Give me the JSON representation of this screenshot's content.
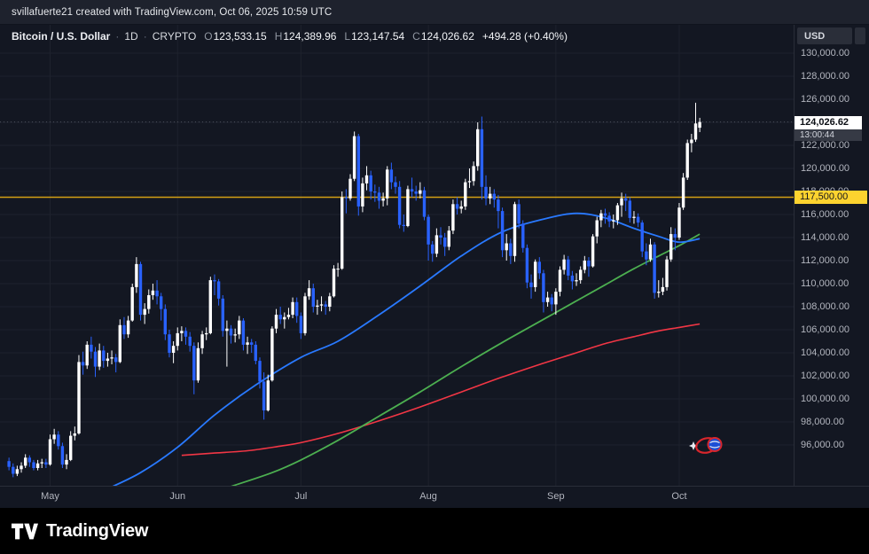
{
  "attribution": "svillafuerte21 created with TradingView.com, Oct 06, 2025 10:59 UTC",
  "legend": {
    "symbol": "Bitcoin / U.S. Dollar",
    "separator": "·",
    "interval": "1D",
    "exchange": "CRYPTO",
    "ohlc": [
      {
        "label": "O",
        "value": "123,533.15"
      },
      {
        "label": "H",
        "value": "124,389.96"
      },
      {
        "label": "L",
        "value": "123,147.54"
      },
      {
        "label": "C",
        "value": "124,026.62"
      }
    ],
    "change": "+494.28 (+0.40%)"
  },
  "price_axis": {
    "currency": "USD",
    "ticks": [
      "130,000.00",
      "128,000.00",
      "126,000.00",
      "124,000.00",
      "122,000.00",
      "120,000.00",
      "118,000.00",
      "116,000.00",
      "114,000.00",
      "112,000.00",
      "110,000.00",
      "108,000.00",
      "106,000.00",
      "104,000.00",
      "102,000.00",
      "100,000.00",
      "98,000.00",
      "96,000.00"
    ],
    "tick_values": [
      130000,
      128000,
      126000,
      124000,
      122000,
      120000,
      118000,
      116000,
      114000,
      112000,
      110000,
      108000,
      106000,
      104000,
      102000,
      100000,
      98000,
      96000
    ],
    "last_price": {
      "text": "124,026.62",
      "value": 124026.62,
      "countdown": "13:00:44"
    },
    "level": {
      "text": "117,500.00",
      "value": 117500
    }
  },
  "time_axis": {
    "labels": [
      {
        "text": "May",
        "day": 10
      },
      {
        "text": "Jun",
        "day": 41
      },
      {
        "text": "Jul",
        "day": 71
      },
      {
        "text": "Aug",
        "day": 102
      },
      {
        "text": "Sep",
        "day": 133
      },
      {
        "text": "Oct",
        "day": 163
      }
    ]
  },
  "footer": {
    "brand": "TradingView"
  },
  "icons": {
    "footer_logo": "tradingview-logo",
    "chart_decoration": "globe-badge-sticker"
  },
  "colors": {
    "background": "#131722",
    "topbar_bg": "#1e222d",
    "footer_bg": "#000000",
    "grid": "#1e222d",
    "axis_text": "#b2b5be",
    "up": "#ffffff",
    "down": "#2962ff",
    "ma_blue": "#2979ff",
    "ma_green": "#4caf50",
    "ma_red": "#f23645",
    "level_line": "#d3a014",
    "level_label_bg": "#fdd32f",
    "last_label_bg": "#ffffff"
  },
  "chart_data": {
    "type": "candlestick",
    "title": "Bitcoin / U.S. Dollar",
    "interval": "1D",
    "exchange": "CRYPTO",
    "price_unit": "USD",
    "price_scale": 1000,
    "start_date": "2025-04-21",
    "end_date": "2025-10-06",
    "ylim_usd": [
      92500,
      132500
    ],
    "hline": 117.5,
    "last_bar": {
      "open": 123533.15,
      "high": 124389.96,
      "low": 123147.54,
      "close": 124026.62,
      "change": 494.28,
      "change_pct": 0.4
    },
    "candles": [
      [
        94.6,
        94.9,
        93.8,
        94.1
      ],
      [
        94.1,
        94.4,
        93.2,
        93.5
      ],
      [
        93.5,
        94.2,
        93.3,
        93.9
      ],
      [
        93.9,
        94.5,
        93.6,
        94.2
      ],
      [
        94.2,
        95.2,
        94.0,
        94.9
      ],
      [
        94.9,
        95.1,
        94.1,
        94.5
      ],
      [
        94.5,
        94.7,
        93.8,
        94.0
      ],
      [
        94.0,
        94.7,
        93.8,
        94.4
      ],
      [
        94.4,
        94.8,
        94.0,
        94.5
      ],
      [
        94.5,
        94.8,
        94.0,
        94.3
      ],
      [
        94.3,
        96.9,
        94.2,
        96.5
      ],
      [
        96.5,
        97.4,
        96.1,
        96.9
      ],
      [
        96.9,
        97.2,
        95.6,
        95.9
      ],
      [
        95.9,
        96.2,
        94.0,
        94.3
      ],
      [
        94.3,
        95.2,
        93.9,
        94.7
      ],
      [
        94.7,
        97.2,
        94.6,
        96.8
      ],
      [
        96.8,
        97.6,
        96.4,
        97.0
      ],
      [
        97.0,
        103.8,
        96.9,
        103.2
      ],
      [
        103.2,
        104.1,
        102.1,
        102.9
      ],
      [
        102.9,
        105.0,
        102.6,
        104.7
      ],
      [
        104.7,
        105.4,
        103.5,
        104.1
      ],
      [
        104.1,
        104.5,
        101.9,
        102.8
      ],
      [
        102.8,
        104.8,
        102.5,
        104.2
      ],
      [
        104.2,
        104.6,
        102.7,
        103.3
      ],
      [
        103.3,
        104.0,
        102.8,
        103.5
      ],
      [
        103.5,
        104.2,
        103.0,
        103.6
      ],
      [
        103.6,
        103.9,
        102.3,
        103.2
      ],
      [
        103.2,
        106.9,
        103.1,
        106.4
      ],
      [
        106.4,
        107.1,
        105.2,
        105.6
      ],
      [
        105.6,
        107.2,
        105.3,
        106.8
      ],
      [
        106.8,
        110.0,
        106.7,
        109.7
      ],
      [
        109.7,
        112.3,
        109.2,
        111.7
      ],
      [
        111.7,
        111.9,
        106.8,
        107.3
      ],
      [
        107.3,
        108.3,
        106.5,
        107.8
      ],
      [
        107.8,
        109.5,
        107.4,
        109.0
      ],
      [
        109.0,
        110.0,
        108.6,
        109.4
      ],
      [
        109.4,
        110.3,
        108.2,
        108.9
      ],
      [
        108.9,
        109.2,
        106.8,
        107.8
      ],
      [
        107.8,
        108.2,
        105.1,
        105.6
      ],
      [
        105.6,
        106.0,
        103.6,
        104.0
      ],
      [
        104.0,
        105.0,
        103.1,
        104.6
      ],
      [
        104.6,
        106.2,
        104.2,
        105.7
      ],
      [
        105.7,
        106.3,
        105.0,
        105.9
      ],
      [
        105.9,
        106.2,
        104.7,
        105.4
      ],
      [
        105.4,
        105.8,
        104.1,
        104.6
      ],
      [
        104.6,
        104.9,
        100.4,
        101.6
      ],
      [
        101.6,
        104.9,
        101.4,
        104.4
      ],
      [
        104.4,
        105.9,
        103.9,
        105.6
      ],
      [
        105.6,
        106.2,
        105.1,
        105.7
      ],
      [
        105.7,
        110.6,
        105.6,
        110.3
      ],
      [
        110.3,
        110.8,
        109.0,
        110.2
      ],
      [
        110.2,
        110.4,
        108.1,
        108.7
      ],
      [
        108.7,
        109.0,
        105.4,
        105.9
      ],
      [
        105.9,
        106.8,
        102.8,
        106.1
      ],
      [
        106.1,
        106.4,
        104.8,
        105.5
      ],
      [
        105.5,
        106.1,
        104.9,
        105.6
      ],
      [
        105.6,
        107.2,
        105.2,
        106.8
      ],
      [
        106.8,
        107.0,
        104.2,
        104.7
      ],
      [
        104.7,
        105.4,
        103.9,
        104.9
      ],
      [
        104.9,
        105.2,
        104.0,
        104.7
      ],
      [
        104.7,
        105.0,
        103.0,
        103.3
      ],
      [
        103.3,
        103.6,
        100.9,
        101.5
      ],
      [
        101.5,
        102.3,
        98.2,
        99.0
      ],
      [
        99.0,
        102.1,
        98.9,
        101.6
      ],
      [
        101.6,
        106.3,
        101.5,
        106.1
      ],
      [
        106.1,
        107.8,
        105.7,
        107.3
      ],
      [
        107.3,
        108.0,
        106.5,
        106.9
      ],
      [
        106.9,
        107.5,
        106.1,
        107.1
      ],
      [
        107.1,
        107.9,
        106.9,
        107.3
      ],
      [
        107.3,
        108.8,
        107.0,
        108.4
      ],
      [
        108.4,
        108.8,
        106.6,
        107.2
      ],
      [
        107.2,
        107.5,
        105.2,
        105.7
      ],
      [
        105.7,
        109.2,
        105.5,
        108.9
      ],
      [
        108.9,
        110.3,
        108.6,
        109.6
      ],
      [
        109.6,
        110.0,
        107.5,
        108.0
      ],
      [
        108.0,
        108.6,
        107.3,
        108.1
      ],
      [
        108.1,
        108.9,
        107.6,
        108.2
      ],
      [
        108.2,
        108.5,
        107.3,
        108.0
      ],
      [
        108.0,
        109.2,
        107.6,
        108.9
      ],
      [
        108.9,
        111.6,
        108.8,
        111.3
      ],
      [
        111.3,
        111.8,
        110.6,
        111.3
      ],
      [
        111.3,
        118.0,
        111.2,
        117.5
      ],
      [
        117.5,
        118.2,
        116.1,
        117.4
      ],
      [
        117.4,
        119.5,
        117.2,
        119.1
      ],
      [
        119.1,
        123.2,
        118.9,
        122.8
      ],
      [
        122.8,
        123.0,
        115.9,
        116.7
      ],
      [
        116.7,
        119.2,
        116.2,
        118.7
      ],
      [
        118.7,
        120.2,
        118.1,
        119.4
      ],
      [
        119.4,
        119.8,
        117.3,
        118.0
      ],
      [
        118.0,
        118.6,
        117.1,
        117.9
      ],
      [
        117.9,
        118.4,
        116.5,
        117.2
      ],
      [
        117.2,
        117.9,
        116.7,
        117.4
      ],
      [
        117.4,
        120.2,
        116.8,
        119.9
      ],
      [
        119.9,
        120.5,
        118.2,
        118.8
      ],
      [
        118.8,
        119.3,
        117.8,
        118.4
      ],
      [
        118.4,
        118.9,
        114.8,
        115.1
      ],
      [
        115.1,
        116.0,
        114.5,
        115.0
      ],
      [
        115.0,
        118.5,
        114.9,
        118.2
      ],
      [
        118.2,
        119.2,
        117.5,
        118.0
      ],
      [
        118.0,
        118.5,
        117.2,
        117.8
      ],
      [
        117.8,
        118.8,
        117.4,
        118.1
      ],
      [
        118.1,
        118.4,
        115.5,
        115.8
      ],
      [
        115.8,
        116.0,
        112.0,
        113.4
      ],
      [
        113.4,
        113.7,
        111.9,
        112.6
      ],
      [
        112.6,
        114.8,
        112.3,
        114.2
      ],
      [
        114.2,
        114.9,
        113.4,
        114.0
      ],
      [
        114.0,
        114.4,
        112.4,
        113.2
      ],
      [
        113.2,
        115.0,
        112.9,
        114.6
      ],
      [
        114.6,
        117.3,
        114.3,
        116.9
      ],
      [
        116.9,
        117.5,
        116.0,
        116.5
      ],
      [
        116.5,
        117.2,
        116.1,
        116.7
      ],
      [
        116.7,
        119.1,
        116.4,
        118.8
      ],
      [
        118.8,
        120.0,
        118.3,
        118.9
      ],
      [
        118.9,
        120.6,
        118.5,
        120.2
      ],
      [
        120.2,
        124.0,
        119.8,
        123.4
      ],
      [
        123.4,
        124.5,
        117.3,
        118.4
      ],
      [
        118.4,
        119.4,
        116.8,
        117.4
      ],
      [
        117.4,
        118.4,
        116.9,
        117.8
      ],
      [
        117.8,
        118.2,
        116.6,
        117.3
      ],
      [
        117.3,
        117.7,
        114.8,
        116.3
      ],
      [
        116.3,
        116.6,
        112.3,
        112.9
      ],
      [
        112.9,
        114.3,
        112.0,
        113.5
      ],
      [
        113.5,
        113.9,
        111.7,
        112.4
      ],
      [
        112.4,
        117.1,
        111.9,
        116.9
      ],
      [
        116.9,
        117.3,
        114.8,
        115.2
      ],
      [
        115.2,
        115.5,
        112.7,
        113.1
      ],
      [
        113.1,
        113.4,
        109.6,
        110.1
      ],
      [
        110.1,
        110.8,
        108.7,
        109.7
      ],
      [
        109.7,
        112.1,
        109.3,
        111.9
      ],
      [
        111.9,
        112.3,
        110.4,
        110.9
      ],
      [
        110.9,
        111.2,
        107.5,
        108.4
      ],
      [
        108.4,
        109.3,
        108.0,
        108.8
      ],
      [
        108.8,
        109.1,
        107.6,
        108.2
      ],
      [
        108.2,
        109.6,
        107.3,
        109.3
      ],
      [
        109.3,
        111.5,
        108.9,
        111.2
      ],
      [
        111.2,
        112.5,
        110.8,
        112.1
      ],
      [
        112.1,
        112.4,
        110.3,
        110.7
      ],
      [
        110.7,
        111.1,
        109.5,
        110.2
      ],
      [
        110.2,
        110.9,
        109.8,
        110.3
      ],
      [
        110.3,
        111.5,
        110.0,
        111.2
      ],
      [
        111.2,
        112.4,
        110.9,
        112.0
      ],
      [
        112.0,
        112.3,
        110.6,
        111.5
      ],
      [
        111.5,
        114.3,
        111.4,
        114.1
      ],
      [
        114.1,
        115.8,
        113.5,
        115.5
      ],
      [
        115.5,
        116.4,
        114.9,
        116.1
      ],
      [
        116.1,
        116.5,
        115.2,
        115.9
      ],
      [
        115.9,
        116.2,
        114.9,
        115.4
      ],
      [
        115.4,
        116.0,
        114.8,
        115.5
      ],
      [
        115.5,
        117.0,
        115.1,
        116.8
      ],
      [
        116.8,
        117.9,
        115.8,
        117.4
      ],
      [
        117.4,
        117.8,
        116.3,
        117.2
      ],
      [
        117.2,
        117.5,
        115.3,
        115.7
      ],
      [
        115.7,
        116.3,
        115.2,
        115.8
      ],
      [
        115.8,
        116.1,
        114.9,
        115.3
      ],
      [
        115.3,
        115.5,
        112.3,
        112.8
      ],
      [
        112.8,
        113.5,
        111.6,
        112.1
      ],
      [
        112.1,
        113.9,
        111.9,
        113.4
      ],
      [
        113.4,
        113.6,
        108.7,
        109.2
      ],
      [
        109.2,
        110.3,
        108.8,
        109.3
      ],
      [
        109.3,
        110.5,
        109.0,
        109.7
      ],
      [
        109.7,
        112.4,
        109.4,
        112.1
      ],
      [
        112.1,
        114.9,
        111.9,
        114.3
      ],
      [
        114.3,
        114.8,
        112.9,
        114.0
      ],
      [
        114.0,
        117.0,
        113.8,
        116.6
      ],
      [
        116.6,
        119.6,
        116.4,
        119.2
      ],
      [
        119.2,
        122.5,
        119.0,
        122.2
      ],
      [
        122.2,
        123.0,
        121.4,
        122.5
      ],
      [
        122.5,
        125.7,
        122.3,
        123.9
      ],
      [
        123.53,
        124.39,
        123.15,
        124.03
      ]
    ],
    "ma_fast_blue": [
      [
        24,
        92.2
      ],
      [
        32,
        93.6
      ],
      [
        41,
        95.8
      ],
      [
        50,
        98.6
      ],
      [
        60,
        101.2
      ],
      [
        71,
        103.6
      ],
      [
        80,
        105.0
      ],
      [
        90,
        107.3
      ],
      [
        100,
        109.8
      ],
      [
        110,
        112.4
      ],
      [
        120,
        114.5
      ],
      [
        130,
        115.6
      ],
      [
        138,
        116.1
      ],
      [
        145,
        115.7
      ],
      [
        152,
        114.8
      ],
      [
        158,
        114.1
      ],
      [
        163,
        113.6
      ],
      [
        168,
        113.9
      ]
    ],
    "ma_mid_green": [
      [
        54,
        92.4
      ],
      [
        64,
        93.6
      ],
      [
        71,
        94.7
      ],
      [
        80,
        96.4
      ],
      [
        90,
        98.5
      ],
      [
        100,
        100.6
      ],
      [
        110,
        102.8
      ],
      [
        120,
        104.9
      ],
      [
        130,
        106.9
      ],
      [
        138,
        108.5
      ],
      [
        145,
        109.9
      ],
      [
        152,
        111.3
      ],
      [
        158,
        112.4
      ],
      [
        163,
        113.3
      ],
      [
        168,
        114.3
      ]
    ],
    "ma_slow_red": [
      [
        42,
        95.1
      ],
      [
        50,
        95.3
      ],
      [
        58,
        95.5
      ],
      [
        66,
        95.9
      ],
      [
        71,
        96.2
      ],
      [
        80,
        97.0
      ],
      [
        90,
        98.1
      ],
      [
        100,
        99.3
      ],
      [
        110,
        100.6
      ],
      [
        120,
        101.9
      ],
      [
        130,
        103.1
      ],
      [
        138,
        104.0
      ],
      [
        145,
        104.8
      ],
      [
        152,
        105.4
      ],
      [
        158,
        105.9
      ],
      [
        163,
        106.2
      ],
      [
        168,
        106.5
      ]
    ]
  }
}
